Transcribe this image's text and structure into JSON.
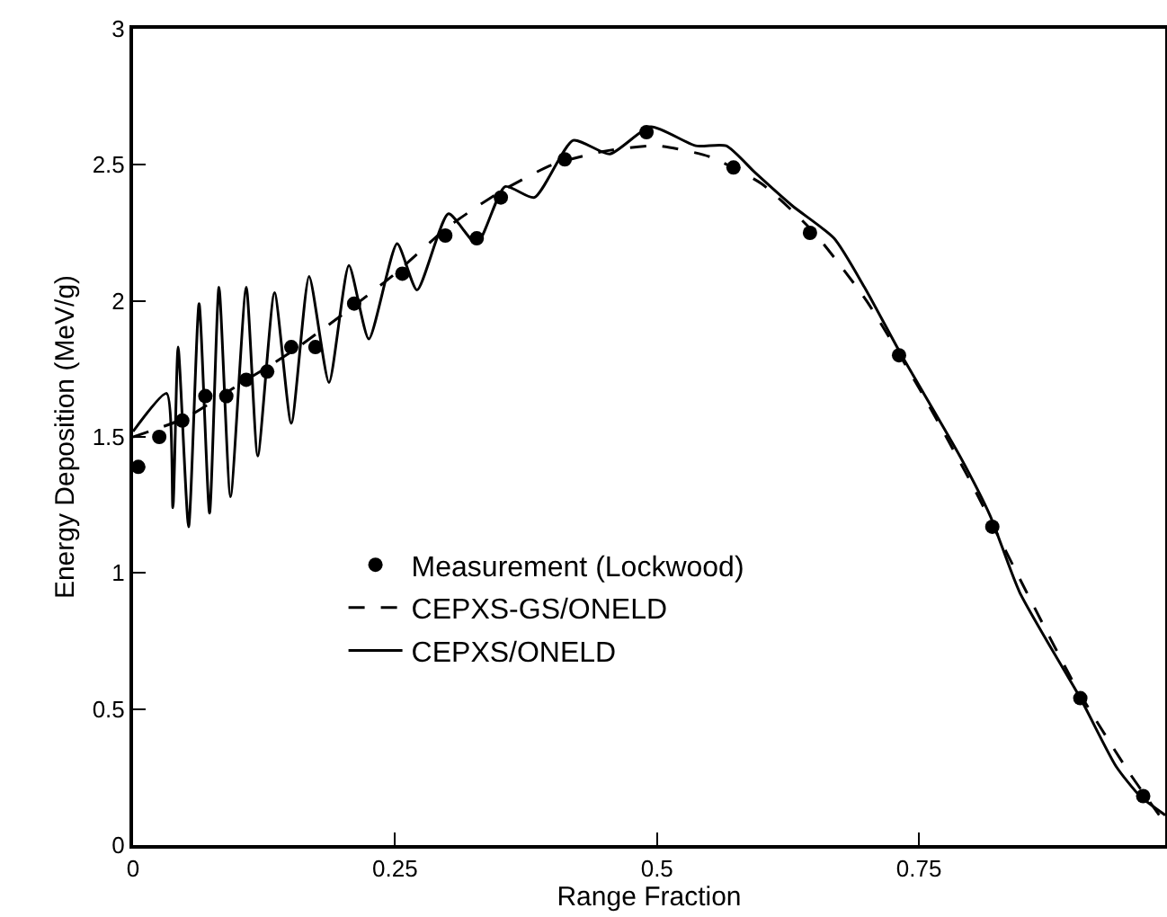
{
  "chart_data": {
    "type": "line",
    "xlabel": "Range Fraction",
    "ylabel": "Energy Deposition (MeV/g)",
    "xlim": [
      0,
      0.985
    ],
    "xticks": [
      0,
      0.25,
      0.5,
      0.75
    ],
    "ylim": [
      0,
      3
    ],
    "yticks": [
      0,
      0.5,
      1,
      1.5,
      2,
      2.5,
      3
    ],
    "grid": false,
    "legend": "bottom left",
    "series": [
      {
        "name": "Measurement (Lockwood)",
        "type": "scatter",
        "marker": "circle",
        "color": "#000000",
        "x": [
          0.005,
          0.025,
          0.047,
          0.069,
          0.089,
          0.108,
          0.128,
          0.151,
          0.174,
          0.211,
          0.257,
          0.298,
          0.328,
          0.351,
          0.412,
          0.49,
          0.573,
          0.646,
          0.731,
          0.82,
          0.904,
          0.964
        ],
        "values": [
          1.39,
          1.5,
          1.56,
          1.65,
          1.65,
          1.71,
          1.74,
          1.83,
          1.83,
          1.99,
          2.1,
          2.24,
          2.23,
          2.38,
          2.52,
          2.62,
          2.49,
          2.25,
          1.8,
          1.17,
          0.54,
          0.18
        ]
      },
      {
        "name": "CEPXS-GS/ONELD",
        "line_style": "dashed",
        "color": "#000000",
        "x": [
          0,
          0.05,
          0.1,
          0.15,
          0.2,
          0.25,
          0.3,
          0.35,
          0.4,
          0.45,
          0.5,
          0.55,
          0.6,
          0.65,
          0.7,
          0.75,
          0.8,
          0.85,
          0.9,
          0.95,
          0.985
        ],
        "values": [
          1.5,
          1.57,
          1.69,
          1.81,
          1.95,
          2.1,
          2.27,
          2.4,
          2.5,
          2.55,
          2.57,
          2.53,
          2.43,
          2.25,
          2.0,
          1.68,
          1.33,
          0.95,
          0.58,
          0.27,
          0.08
        ]
      },
      {
        "name": "CEPXS/ONELD",
        "line_style": "solid",
        "color": "#000000",
        "x": [
          0,
          0.032,
          0.038,
          0.043,
          0.053,
          0.063,
          0.073,
          0.082,
          0.093,
          0.108,
          0.119,
          0.135,
          0.151,
          0.168,
          0.187,
          0.206,
          0.225,
          0.252,
          0.271,
          0.301,
          0.328,
          0.355,
          0.383,
          0.42,
          0.455,
          0.494,
          0.537,
          0.566,
          0.594,
          0.629,
          0.669,
          0.698,
          0.732,
          0.789,
          0.818,
          0.846,
          0.904,
          0.938,
          0.961,
          0.985
        ],
        "values": [
          1.52,
          1.66,
          1.24,
          1.83,
          1.17,
          1.99,
          1.22,
          2.05,
          1.28,
          2.05,
          1.43,
          2.03,
          1.55,
          2.09,
          1.7,
          2.13,
          1.86,
          2.21,
          2.04,
          2.32,
          2.21,
          2.42,
          2.38,
          2.59,
          2.54,
          2.64,
          2.57,
          2.57,
          2.47,
          2.35,
          2.23,
          2.05,
          1.81,
          1.43,
          1.21,
          0.93,
          0.54,
          0.29,
          0.18,
          0.11
        ]
      }
    ]
  }
}
